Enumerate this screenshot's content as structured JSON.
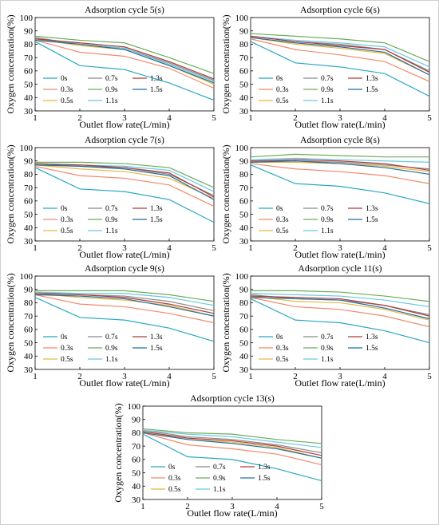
{
  "figure": {
    "chart_data": [
      {
        "type": "line",
        "title": "Adsorption cycle 5(s)",
        "xlabel": "Outlet flow rate(L/min)",
        "ylabel": "Oxygen concentration(%)",
        "xlim": [
          1,
          5
        ],
        "ylim": [
          30,
          100
        ],
        "xticks": [
          "1",
          "2",
          "3",
          "4",
          "5"
        ],
        "yticks": [
          "30",
          "40",
          "50",
          "60",
          "70",
          "80",
          "90",
          "100"
        ],
        "grid": false,
        "legend": "bottom-left, 3 columns",
        "x": [
          1,
          2,
          3,
          4,
          5
        ],
        "series": [
          {
            "name": "0s",
            "color": "#29a8c4",
            "values": [
              82,
              64,
              61,
              51,
              38
            ]
          },
          {
            "name": "0.3s",
            "color": "#f08a6a",
            "values": [
              83,
              74,
              71,
              62,
              47
            ]
          },
          {
            "name": "0.5s",
            "color": "#e8b840",
            "values": [
              84,
              79,
              76,
              64,
              50
            ]
          },
          {
            "name": "0.7s",
            "color": "#8a8a8a",
            "values": [
              85,
              80,
              77,
              66,
              53
            ]
          },
          {
            "name": "0.9s",
            "color": "#6aad5a",
            "values": [
              86,
              83,
              81,
              70,
              58
            ]
          },
          {
            "name": "1.1s",
            "color": "#6ac8e0",
            "values": [
              84,
              80,
              77,
              65,
              52
            ]
          },
          {
            "name": "1.3s",
            "color": "#b03a3a",
            "values": [
              84,
              81,
              78,
              67,
              54
            ]
          },
          {
            "name": "1.5s",
            "color": "#1f6f9f",
            "values": [
              83,
              80,
              76,
              64,
              51
            ]
          }
        ]
      },
      {
        "type": "line",
        "title": "Adsorption cycle 6(s)",
        "xlabel": "Outlet flow rate(L/min)",
        "ylabel": "Oxygen concentration(%)",
        "xlim": [
          1,
          5
        ],
        "ylim": [
          30,
          100
        ],
        "xticks": [
          "1",
          "2",
          "3",
          "4",
          "5"
        ],
        "yticks": [
          "30",
          "40",
          "50",
          "60",
          "70",
          "80",
          "90",
          "100"
        ],
        "grid": false,
        "legend": "bottom-left, 3 columns",
        "x": [
          1,
          2,
          3,
          4,
          5
        ],
        "series": [
          {
            "name": "0s",
            "color": "#29a8c4",
            "values": [
              82,
              66,
              63,
              58,
              41
            ]
          },
          {
            "name": "0.3s",
            "color": "#f08a6a",
            "values": [
              84,
              76,
              72,
              67,
              52
            ]
          },
          {
            "name": "0.5s",
            "color": "#e8b840",
            "values": [
              85,
              80,
              77,
              73,
              57
            ]
          },
          {
            "name": "0.7s",
            "color": "#8a8a8a",
            "values": [
              86,
              82,
              80,
              76,
              60
            ]
          },
          {
            "name": "0.9s",
            "color": "#6aad5a",
            "values": [
              88,
              86,
              84,
              81,
              67
            ]
          },
          {
            "name": "1.1s",
            "color": "#6ac8e0",
            "values": [
              86,
              83,
              81,
              78,
              63
            ]
          },
          {
            "name": "1.3s",
            "color": "#b03a3a",
            "values": [
              86,
              82,
              79,
              76,
              59
            ]
          },
          {
            "name": "1.5s",
            "color": "#1f6f9f",
            "values": [
              85,
              81,
              78,
              74,
              57
            ]
          }
        ]
      },
      {
        "type": "line",
        "title": "Adsorption cycle 7(s)",
        "xlabel": "Outlet flow rate(L/min)",
        "ylabel": "Oxygen concentration(%)",
        "xlim": [
          1,
          5
        ],
        "ylim": [
          30,
          100
        ],
        "xticks": [
          "1",
          "2",
          "3",
          "4",
          "5"
        ],
        "yticks": [
          "30",
          "40",
          "50",
          "60",
          "70",
          "80",
          "90",
          "100"
        ],
        "grid": false,
        "legend": "bottom-left, 3 columns",
        "x": [
          1,
          2,
          3,
          4,
          5
        ],
        "series": [
          {
            "name": "0s",
            "color": "#29a8c4",
            "values": [
              85,
              69,
              67,
              61,
              44
            ]
          },
          {
            "name": "0.3s",
            "color": "#f08a6a",
            "values": [
              86,
              79,
              77,
              72,
              56
            ]
          },
          {
            "name": "0.5s",
            "color": "#e8b840",
            "values": [
              87,
              84,
              82,
              77,
              62
            ]
          },
          {
            "name": "0.7s",
            "color": "#8a8a8a",
            "values": [
              88,
              86,
              85,
              80,
              64
            ]
          },
          {
            "name": "0.9s",
            "color": "#6aad5a",
            "values": [
              89,
              89,
              88,
              85,
              70
            ]
          },
          {
            "name": "1.1s",
            "color": "#6ac8e0",
            "values": [
              88,
              87,
              86,
              83,
              67
            ]
          },
          {
            "name": "1.3s",
            "color": "#b03a3a",
            "values": [
              88,
              87,
              85,
              81,
              63
            ]
          },
          {
            "name": "1.5s",
            "color": "#1f6f9f",
            "values": [
              87,
              86,
              84,
              79,
              61
            ]
          }
        ]
      },
      {
        "type": "line",
        "title": "Adsorption cycle 8(s)",
        "xlabel": "Outlet flow rate(L/min)",
        "ylabel": "Oxygen concentration(%)",
        "xlim": [
          1,
          5
        ],
        "ylim": [
          30,
          100
        ],
        "xticks": [
          "1",
          "2",
          "3",
          "4",
          "5"
        ],
        "yticks": [
          "30",
          "40",
          "50",
          "60",
          "70",
          "80",
          "90",
          "100"
        ],
        "grid": false,
        "legend": "bottom-left, 3 columns",
        "x": [
          1,
          2,
          3,
          4,
          5
        ],
        "series": [
          {
            "name": "0s",
            "color": "#29a8c4",
            "values": [
              87,
              73,
              71,
              66,
              58
            ]
          },
          {
            "name": "0.3s",
            "color": "#f08a6a",
            "values": [
              88,
              84,
              82,
              79,
              73
            ]
          },
          {
            "name": "0.5s",
            "color": "#e8b840",
            "values": [
              89,
              89,
              88,
              86,
              82
            ]
          },
          {
            "name": "0.7s",
            "color": "#8a8a8a",
            "values": [
              90,
              90,
              89,
              87,
              84
            ]
          },
          {
            "name": "0.9s",
            "color": "#6aad5a",
            "values": [
              93,
              95,
              94,
              93,
              93
            ]
          },
          {
            "name": "1.1s",
            "color": "#6ac8e0",
            "values": [
              91,
              92,
              91,
              90,
              89
            ]
          },
          {
            "name": "1.3s",
            "color": "#b03a3a",
            "values": [
              90,
              91,
              90,
              88,
              83
            ]
          },
          {
            "name": "1.5s",
            "color": "#1f6f9f",
            "values": [
              89,
              90,
              88,
              85,
              80
            ]
          }
        ]
      },
      {
        "type": "line",
        "title": "Adsorption cycle 9(s)",
        "xlabel": "Outlet flow rate(L/min)",
        "ylabel": "Oxygen concentration(%)",
        "xlim": [
          1,
          5
        ],
        "ylim": [
          30,
          100
        ],
        "xticks": [
          "1",
          "2",
          "3",
          "4",
          "5"
        ],
        "yticks": [
          "30",
          "40",
          "50",
          "60",
          "70",
          "80",
          "90",
          "100"
        ],
        "grid": false,
        "legend": "bottom-left, 3 columns",
        "x": [
          1,
          2,
          3,
          4,
          5
        ],
        "series": [
          {
            "name": "0s",
            "color": "#29a8c4",
            "values": [
              84,
              69,
              67,
              61,
              51
            ]
          },
          {
            "name": "0.3s",
            "color": "#f08a6a",
            "values": [
              86,
              79,
              77,
              72,
              65
            ]
          },
          {
            "name": "0.5s",
            "color": "#e8b840",
            "values": [
              87,
              84,
              82,
              78,
              70
            ]
          },
          {
            "name": "0.7s",
            "color": "#8a8a8a",
            "values": [
              88,
              86,
              85,
              81,
              74
            ]
          },
          {
            "name": "0.9s",
            "color": "#6aad5a",
            "values": [
              89,
              89,
              89,
              86,
              81
            ]
          },
          {
            "name": "1.1s",
            "color": "#6ac8e0",
            "values": [
              88,
              87,
              87,
              84,
              78
            ]
          },
          {
            "name": "1.3s",
            "color": "#b03a3a",
            "values": [
              87,
              86,
              84,
              79,
              72
            ]
          },
          {
            "name": "1.5s",
            "color": "#1f6f9f",
            "values": [
              86,
              85,
              83,
              77,
              70
            ]
          }
        ]
      },
      {
        "type": "line",
        "title": "Adsorption cycle 11(s)",
        "xlabel": "Outlet flow rate(L/min)",
        "ylabel": "Oxygen concentration(%)",
        "xlim": [
          1,
          5
        ],
        "ylim": [
          30,
          100
        ],
        "xticks": [
          "1",
          "2",
          "3",
          "4",
          "5"
        ],
        "yticks": [
          "30",
          "40",
          "50",
          "60",
          "70",
          "80",
          "90",
          "100"
        ],
        "grid": false,
        "legend": "bottom-left, 3 columns",
        "x": [
          1,
          2,
          3,
          4,
          5
        ],
        "series": [
          {
            "name": "0s",
            "color": "#29a8c4",
            "values": [
              83,
              67,
              65,
              59,
              50
            ]
          },
          {
            "name": "0.3s",
            "color": "#f08a6a",
            "values": [
              84,
              77,
              75,
              70,
              62
            ]
          },
          {
            "name": "0.5s",
            "color": "#e8b840",
            "values": [
              85,
              81,
              80,
              75,
              67
            ]
          },
          {
            "name": "0.7s",
            "color": "#8a8a8a",
            "values": [
              86,
              83,
              82,
              78,
              71
            ]
          },
          {
            "name": "0.9s",
            "color": "#6aad5a",
            "values": [
              89,
              89,
              88,
              85,
              81
            ]
          },
          {
            "name": "1.1s",
            "color": "#6ac8e0",
            "values": [
              87,
              86,
              85,
              82,
              77
            ]
          },
          {
            "name": "1.3s",
            "color": "#b03a3a",
            "values": [
              85,
              84,
              83,
              78,
              70
            ]
          },
          {
            "name": "1.5s",
            "color": "#1f6f9f",
            "values": [
              84,
              83,
              82,
              76,
              68
            ]
          }
        ]
      },
      {
        "type": "line",
        "title": "Adsorption cycle 13(s)",
        "xlabel": "Outlet flow rate(L/min)",
        "ylabel": "Oxygen concentration(%)",
        "xlim": [
          1,
          5
        ],
        "ylim": [
          30,
          100
        ],
        "xticks": [
          "1",
          "2",
          "3",
          "4",
          "5"
        ],
        "yticks": [
          "30",
          "40",
          "50",
          "60",
          "70",
          "80",
          "90",
          "100"
        ],
        "grid": false,
        "legend": "bottom-left, 3 columns",
        "x": [
          1,
          2,
          3,
          4,
          5
        ],
        "series": [
          {
            "name": "0s",
            "color": "#29a8c4",
            "values": [
              79,
              62,
              60,
              53,
              44
            ]
          },
          {
            "name": "0.3s",
            "color": "#f08a6a",
            "values": [
              80,
              71,
              68,
              64,
              56
            ]
          },
          {
            "name": "0.5s",
            "color": "#e8b840",
            "values": [
              81,
              75,
              73,
              69,
              61
            ]
          },
          {
            "name": "0.7s",
            "color": "#8a8a8a",
            "values": [
              82,
              77,
              75,
              71,
              65
            ]
          },
          {
            "name": "0.9s",
            "color": "#6aad5a",
            "values": [
              83,
              80,
              79,
              75,
              72
            ]
          },
          {
            "name": "1.1s",
            "color": "#6ac8e0",
            "values": [
              82,
              79,
              77,
              73,
              69
            ]
          },
          {
            "name": "1.3s",
            "color": "#b03a3a",
            "values": [
              81,
              76,
              74,
              70,
              63
            ]
          },
          {
            "name": "1.5s",
            "color": "#1f6f9f",
            "values": [
              80,
              75,
              72,
              68,
              61
            ]
          }
        ]
      }
    ]
  }
}
